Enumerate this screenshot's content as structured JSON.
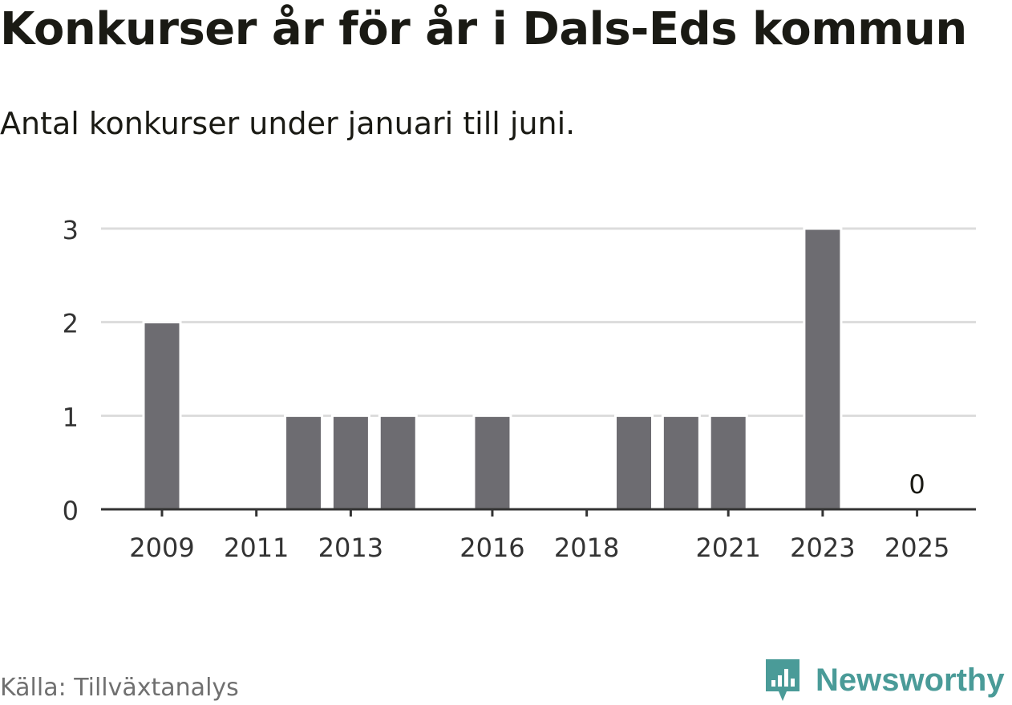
{
  "header": {
    "title": "Konkurser år för år i Dals-Eds kommun",
    "subtitle": "Antal konkurser under januari till juni."
  },
  "footer": {
    "source": "Källa: Tillväxtanalys",
    "brand": "Newsworthy",
    "brand_color": "#4a9b98"
  },
  "chart_data": {
    "type": "bar",
    "x": [
      2009,
      2010,
      2011,
      2012,
      2013,
      2014,
      2015,
      2016,
      2017,
      2018,
      2019,
      2020,
      2021,
      2022,
      2023,
      2024,
      2025
    ],
    "values": [
      2,
      0,
      0,
      1,
      1,
      1,
      0,
      1,
      0,
      0,
      1,
      1,
      1,
      0,
      3,
      0,
      0
    ],
    "x_tick_labels": [
      "2009",
      "2011",
      "2013",
      "2016",
      "2018",
      "2021",
      "2023",
      "2025"
    ],
    "y_ticks": [
      0,
      1,
      2,
      3
    ],
    "ylim": [
      0,
      3
    ],
    "annotations": [
      {
        "x": 2025,
        "text": "0"
      }
    ],
    "bar_color": "#6d6c71",
    "grid": true,
    "title": "Konkurser år för år i Dals-Eds kommun",
    "xlabel": "",
    "ylabel": ""
  }
}
